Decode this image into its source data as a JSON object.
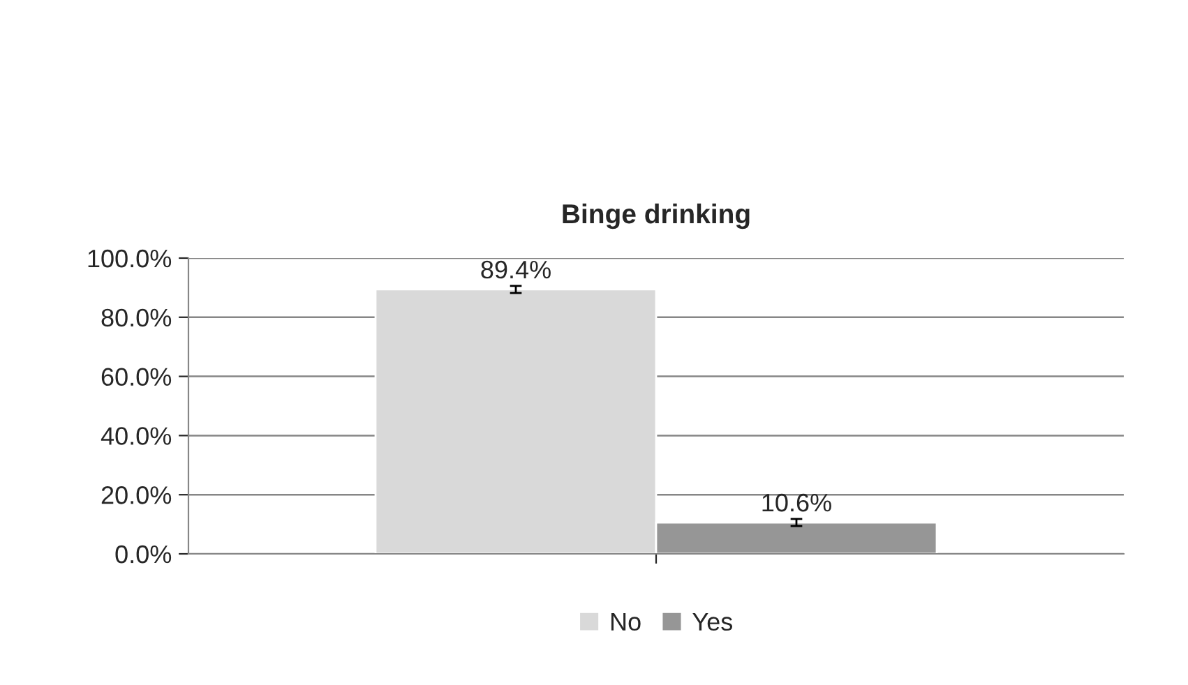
{
  "chart_data": {
    "type": "bar",
    "title": "Binge drinking",
    "categories": [
      null
    ],
    "series": [
      {
        "name": "No",
        "color": "#d9d9d9",
        "values": [
          89.4
        ],
        "errors": [
          1.2
        ],
        "value_labels": [
          "89.4%"
        ]
      },
      {
        "name": "Yes",
        "color": "#969696",
        "values": [
          10.6
        ],
        "errors": [
          1.2
        ],
        "value_labels": [
          "10.6%"
        ]
      }
    ],
    "ylim": [
      0,
      100
    ],
    "yticks": [
      {
        "value": 0,
        "label": "0.0%"
      },
      {
        "value": 20,
        "label": "20.0%"
      },
      {
        "value": 40,
        "label": "40.0%"
      },
      {
        "value": 60,
        "label": "60.0%"
      },
      {
        "value": 80,
        "label": "80.0%"
      },
      {
        "value": 100,
        "label": "100.0%"
      }
    ],
    "grid": "y",
    "legend": "bottom"
  }
}
